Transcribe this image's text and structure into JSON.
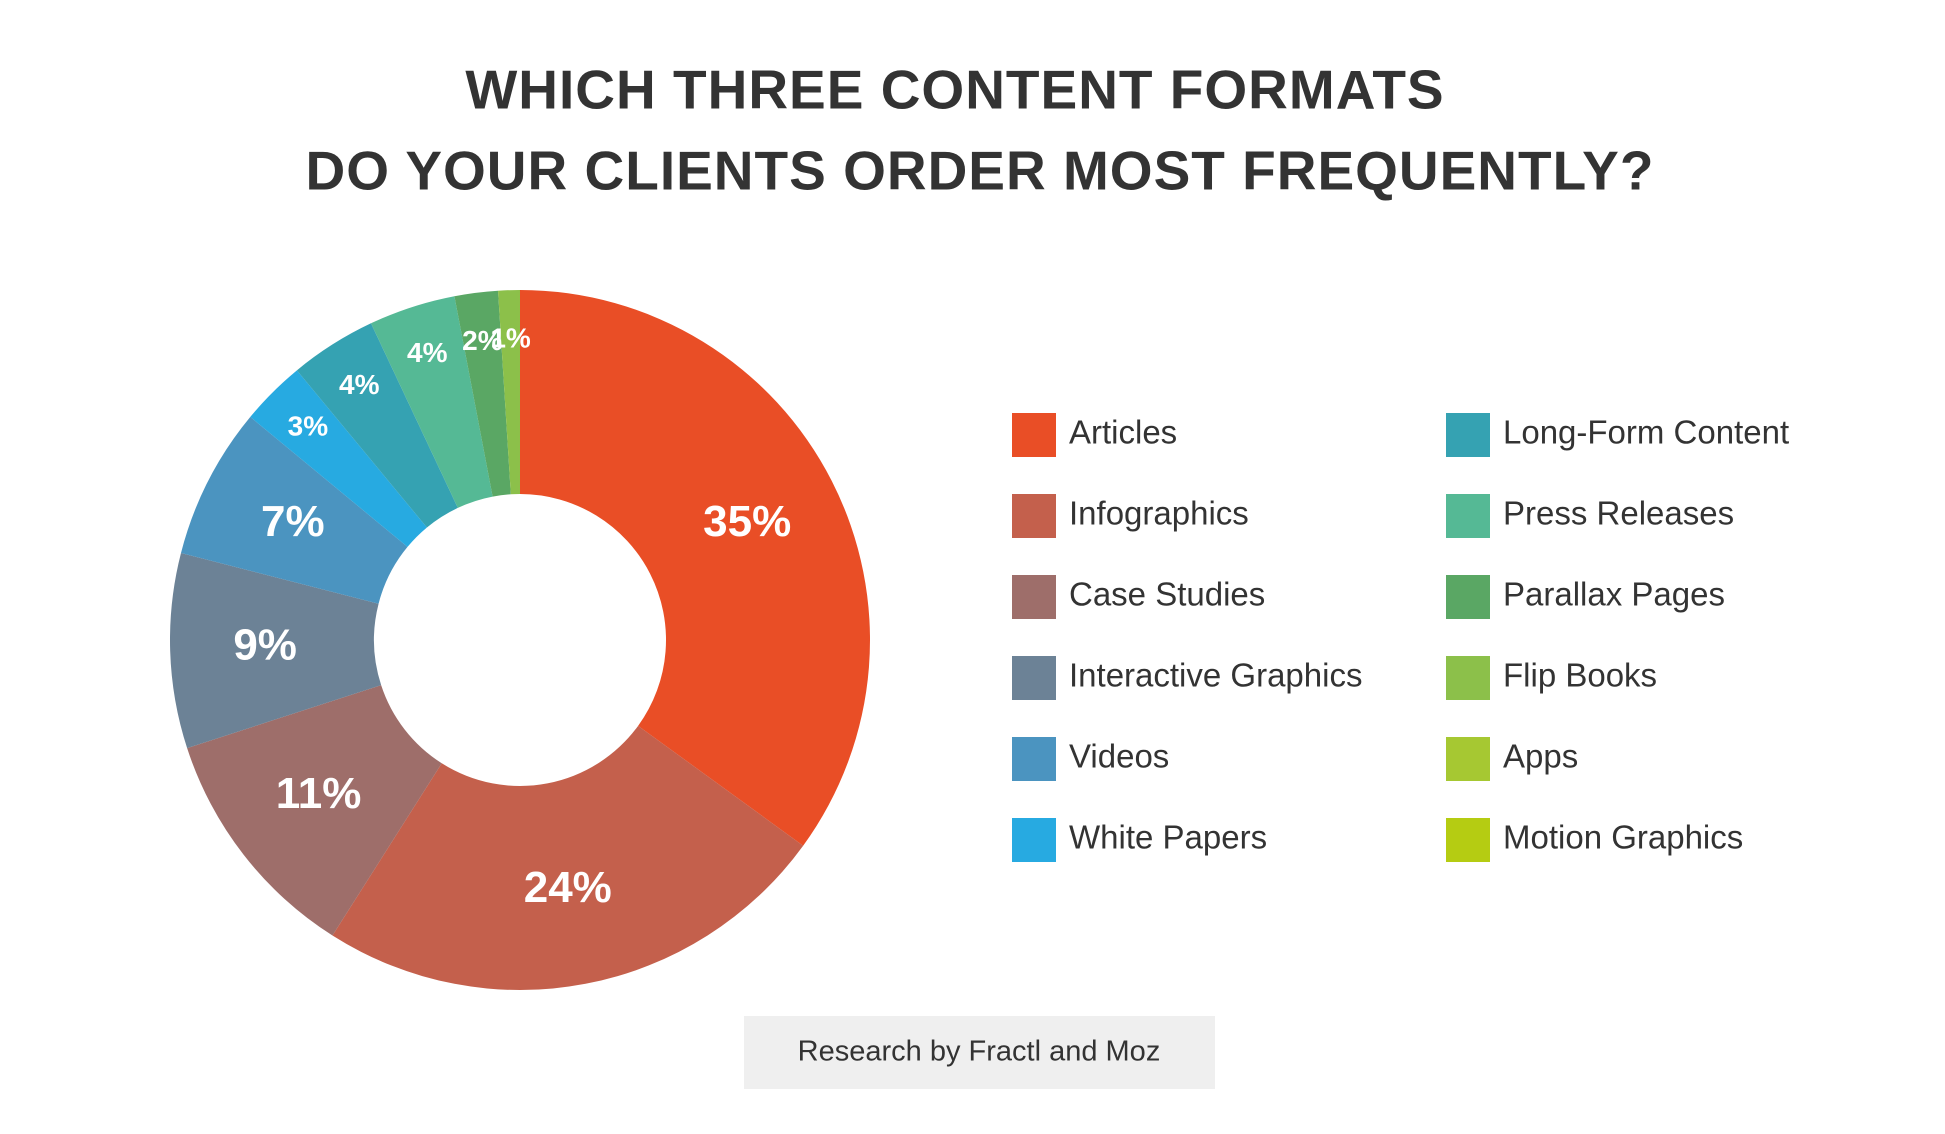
{
  "chart_data": {
    "type": "donut",
    "title": [
      "WHICH THREE CONTENT FORMATS",
      "DO YOUR CLIENTS ORDER MOST FREQUENTLY?"
    ],
    "categories": [
      "Articles",
      "Infographics",
      "Case Studies",
      "Interactive Graphics",
      "Videos",
      "White Papers",
      "Long-Form Content",
      "Press Releases",
      "Parallax Pages",
      "Flip Books",
      "Apps",
      "Motion Graphics"
    ],
    "values": [
      35,
      24,
      11,
      9,
      7,
      3,
      4,
      4,
      2,
      1,
      0,
      0
    ],
    "value_labels": [
      "35%",
      "24%",
      "11%",
      "9%",
      "7%",
      "3%",
      "4%",
      "4%",
      "2%",
      "1%",
      null,
      null
    ],
    "colors": [
      "#e94e26",
      "#c4604c",
      "#9e6e6a",
      "#6c8296",
      "#4b94c0",
      "#27aae1",
      "#35a2b2",
      "#55b995",
      "#5aa764",
      "#8cc04a",
      "#a6c832",
      "#b5cc12"
    ],
    "source": "Research by Fractl and Moz"
  }
}
